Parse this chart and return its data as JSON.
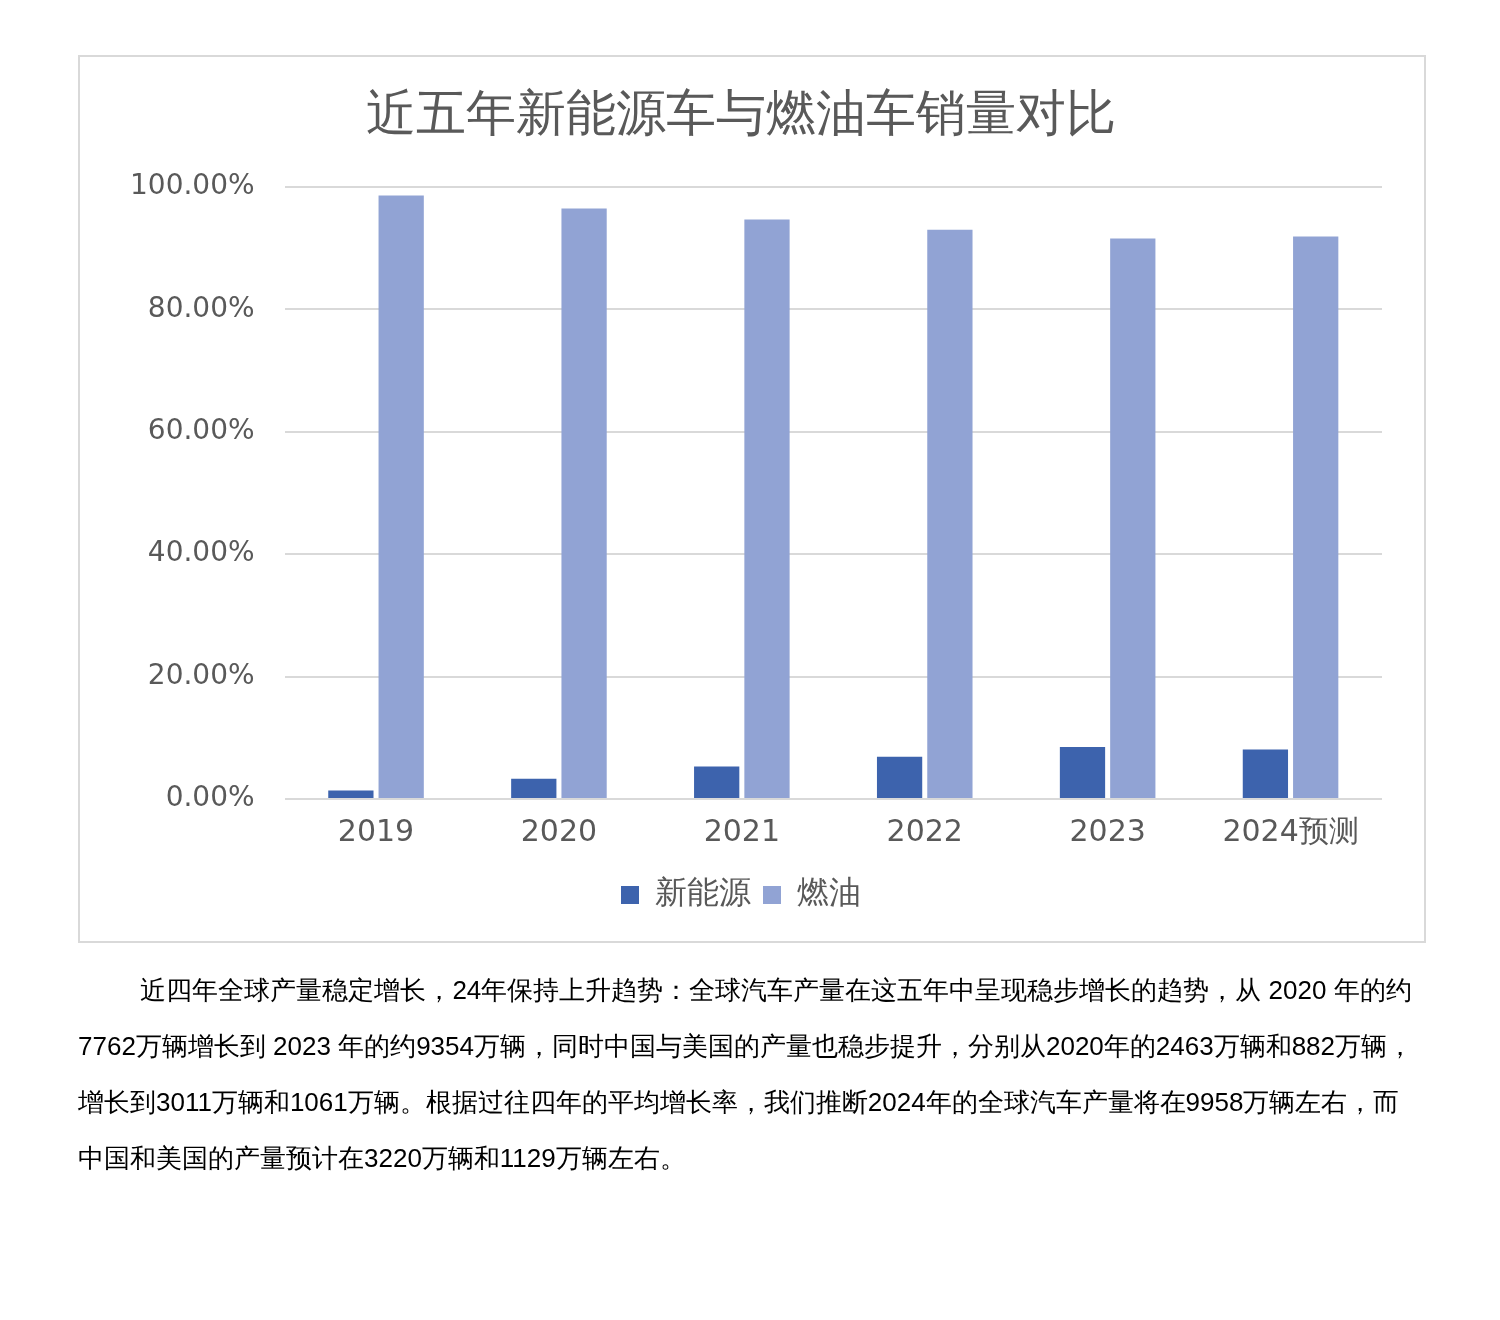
{
  "chart_data": {
    "type": "bar",
    "title": "近五年新能源车与燃油车销量对比",
    "categories": [
      "2019",
      "2020",
      "2021",
      "2022",
      "2023",
      "2024预测"
    ],
    "series": [
      {
        "name": "新能源",
        "color": "#3d63ad",
        "values": [
          1.4,
          3.3,
          5.3,
          6.9,
          8.5,
          8.1
        ]
      },
      {
        "name": "燃油",
        "color": "#91a3d4",
        "values": [
          98.6,
          96.5,
          94.7,
          93.0,
          91.6,
          91.9
        ]
      }
    ],
    "ylim": [
      0,
      100
    ],
    "yticks": [
      {
        "value": 0,
        "label": "0.00%"
      },
      {
        "value": 20,
        "label": "20.00%"
      },
      {
        "value": 40,
        "label": "40.00%"
      },
      {
        "value": 60,
        "label": "60.00%"
      },
      {
        "value": 80,
        "label": "80.00%"
      },
      {
        "value": 100,
        "label": "100.00%"
      }
    ],
    "grid": "y",
    "legend": "bottom",
    "annotations": [
      "近四年全球产量稳定增长，24年保持上升趋势：全球汽车产量在这五年中呈现稳步增长的趋势，从 2020 年的约7762万辆增长到 2023 年的约9354万辆，同时中国与美国的产量也稳步提升，分别从2020年的2463万辆和882万辆，增长到3011万辆和1061万辆。根据过往四年的平均增长率，我们推断2024年的全球汽车产量将在9958万辆左右，而中国和美国的产量预计在3220万辆和1129万辆左右。"
    ]
  }
}
